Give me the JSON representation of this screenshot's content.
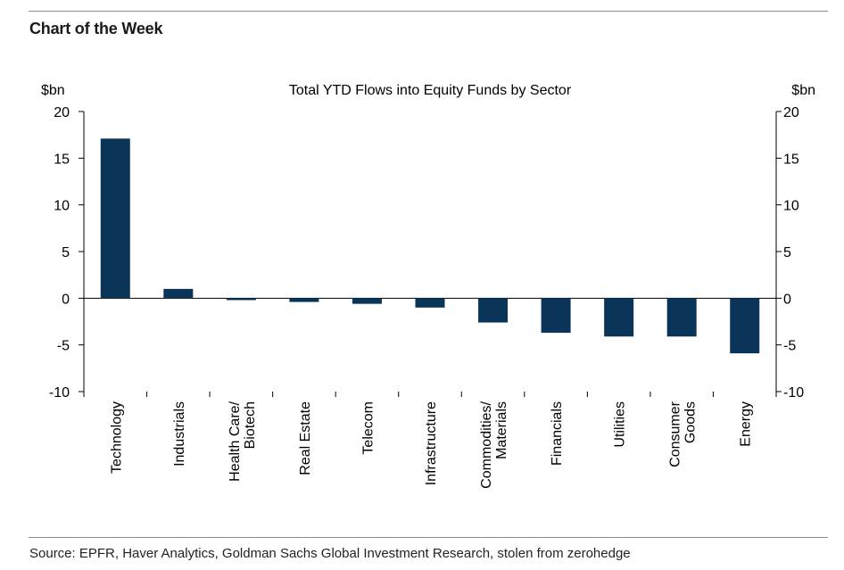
{
  "header": {
    "title": "Chart of the Week",
    "source": "Source: EPFR, Haver Analytics, Goldman Sachs Global Investment Research, stolen from zerohedge"
  },
  "chart_data": {
    "type": "bar",
    "title": "Total YTD Flows into Equity Funds by Sector",
    "ylabel_left": "$bn",
    "ylabel_right": "$bn",
    "ylim": [
      -10,
      20
    ],
    "yticks": [
      20,
      15,
      10,
      5,
      0,
      -5,
      -10
    ],
    "grid": false,
    "bar_color": "#0b3558",
    "categories": [
      [
        "Technology"
      ],
      [
        "Industrials"
      ],
      [
        "Health Care/",
        "Biotech"
      ],
      [
        "Real Estate"
      ],
      [
        "Telecom"
      ],
      [
        "Infrastructure"
      ],
      [
        "Commodities/",
        "Materials"
      ],
      [
        "Financials"
      ],
      [
        "Utilities"
      ],
      [
        "Consumer",
        "Goods"
      ],
      [
        "Energy"
      ]
    ],
    "values": [
      17.1,
      1.0,
      -0.2,
      -0.4,
      -0.6,
      -1.0,
      -2.6,
      -3.7,
      -4.1,
      -4.1,
      -5.9
    ]
  }
}
